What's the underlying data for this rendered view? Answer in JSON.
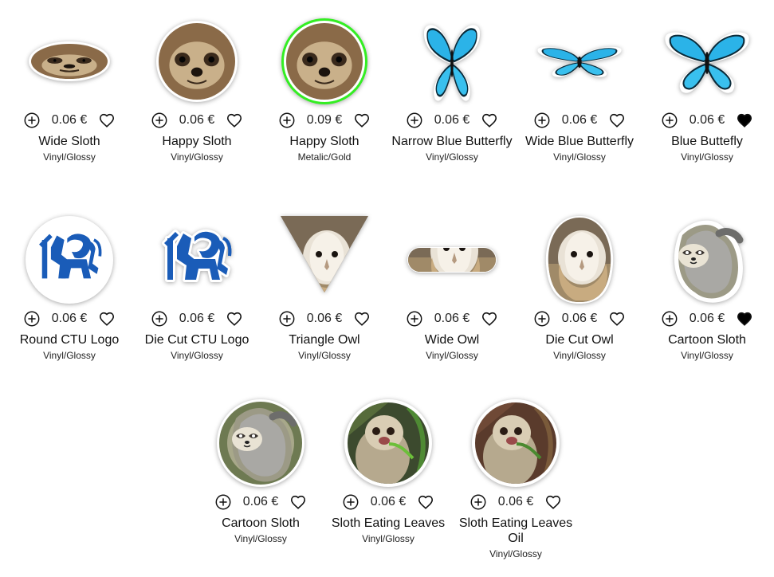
{
  "colors": {
    "highlight_border": "#33ee22",
    "text": "#111111",
    "heart_filled": "#000000"
  },
  "stickers": [
    {
      "name": "Wide Sloth",
      "price": "0.06 €",
      "material": "Vinyl/Glossy",
      "favorited": false,
      "image": "sloth-face-wide"
    },
    {
      "name": "Happy Sloth",
      "price": "0.06 €",
      "material": "Vinyl/Glossy",
      "favorited": false,
      "image": "sloth-face"
    },
    {
      "name": "Happy Sloth",
      "price": "0.09 €",
      "material": "Metalic/Gold",
      "favorited": false,
      "image": "sloth-face-green-border"
    },
    {
      "name": "Narrow Blue Butterfly",
      "price": "0.06 €",
      "material": "Vinyl/Glossy",
      "favorited": false,
      "image": "butterfly-narrow"
    },
    {
      "name": "Wide Blue Butterfly",
      "price": "0.06 €",
      "material": "Vinyl/Glossy",
      "favorited": false,
      "image": "butterfly-wide"
    },
    {
      "name": "Blue Buttefly",
      "price": "0.06 €",
      "material": "Vinyl/Glossy",
      "favorited": true,
      "image": "butterfly"
    },
    {
      "name": "Round CTU Logo",
      "price": "0.06 €",
      "material": "Vinyl/Glossy",
      "favorited": false,
      "image": "ctu-logo-round"
    },
    {
      "name": "Die Cut CTU Logo",
      "price": "0.06 €",
      "material": "Vinyl/Glossy",
      "favorited": false,
      "image": "ctu-logo-diecut"
    },
    {
      "name": "Triangle Owl",
      "price": "0.06 €",
      "material": "Vinyl/Glossy",
      "favorited": false,
      "image": "owl-triangle"
    },
    {
      "name": "Wide Owl",
      "price": "0.06 €",
      "material": "Vinyl/Glossy",
      "favorited": false,
      "image": "owl-wide"
    },
    {
      "name": "Die Cut Owl",
      "price": "0.06 €",
      "material": "Vinyl/Glossy",
      "favorited": false,
      "image": "owl-diecut"
    },
    {
      "name": "Cartoon Sloth",
      "price": "0.06 €",
      "material": "Vinyl/Glossy",
      "favorited": true,
      "image": "cartoon-sloth-diecut"
    },
    {
      "name": "Cartoon Sloth",
      "price": "0.06 €",
      "material": "Vinyl/Glossy",
      "favorited": false,
      "image": "cartoon-sloth-round"
    },
    {
      "name": "Sloth Eating Leaves",
      "price": "0.06 €",
      "material": "Vinyl/Glossy",
      "favorited": false,
      "image": "sloth-leaves-photo"
    },
    {
      "name": "Sloth Eating Leaves Oil",
      "price": "0.06 €",
      "material": "Vinyl/Glossy",
      "favorited": false,
      "image": "sloth-leaves-oil"
    }
  ]
}
